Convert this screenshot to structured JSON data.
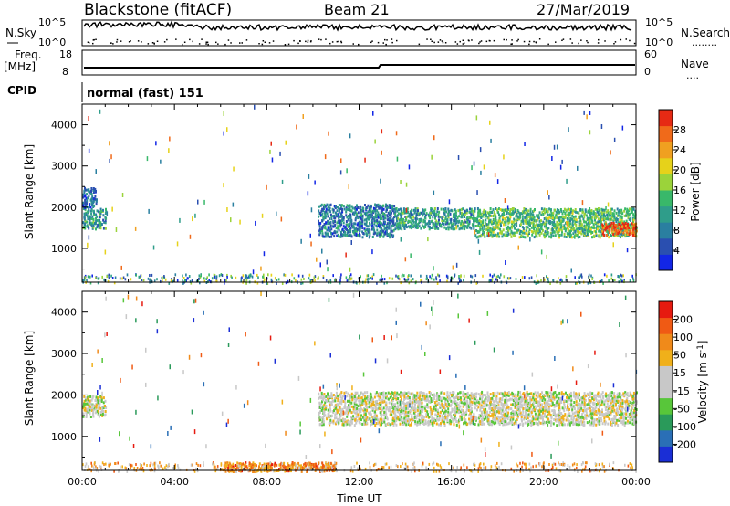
{
  "header": {
    "station": "Blackstone (fitACF)",
    "beam": "Beam 21",
    "date": "27/Mar/2019"
  },
  "panels": {
    "nsky": {
      "left_label": "N.Sky",
      "right_label": "N.Search",
      "left_ticks": [
        "10^5",
        "10^0"
      ],
      "right_ticks": [
        "10^5",
        "10^0"
      ],
      "right_marker": "........"
    },
    "freq": {
      "left_label_1": "Freq.",
      "left_label_2": "[MHz]",
      "left_ticks": [
        "18",
        "8"
      ],
      "right_label": "Nave",
      "right_ticks": [
        "60",
        "0"
      ],
      "right_marker": "...."
    },
    "cpid": {
      "label": "CPID",
      "text": "normal (fast) 151"
    }
  },
  "chart_data": [
    {
      "type": "heatmap",
      "name": "power",
      "ylabel": "Slant Range [km]",
      "ylim": [
        180,
        4500
      ],
      "yticks": [
        "4000",
        "3000",
        "2000",
        "1000"
      ],
      "ytick_values": [
        4000,
        3000,
        2000,
        1000
      ],
      "xlim_hours": [
        0,
        24
      ],
      "colorbar": {
        "label": "Power [dB]",
        "ticks": [
          "4",
          "8",
          "12",
          "16",
          "20",
          "24",
          "28"
        ],
        "colors": [
          "#1226e6",
          "#2a4fb0",
          "#2a7fa0",
          "#2f9d8a",
          "#39b86a",
          "#9bd33a",
          "#e6d21a",
          "#f0a020",
          "#f06a1a",
          "#e62a14"
        ]
      },
      "regions": [
        {
          "x0": 0.0,
          "x1": 1.0,
          "y0": 1500,
          "y1": 2000,
          "level": 0.35
        },
        {
          "x0": 0.0,
          "x1": 0.6,
          "y0": 2000,
          "y1": 2500,
          "level": 0.2
        },
        {
          "x0": 10.2,
          "x1": 13.5,
          "y0": 1300,
          "y1": 2100,
          "level": 0.25
        },
        {
          "x0": 13.5,
          "x1": 17.0,
          "y0": 1500,
          "y1": 2000,
          "level": 0.35
        },
        {
          "x0": 17.0,
          "x1": 24.0,
          "y0": 1300,
          "y1": 2000,
          "level": 0.45
        },
        {
          "x0": 22.5,
          "x1": 24.0,
          "y0": 1350,
          "y1": 1650,
          "level": 0.9
        }
      ]
    },
    {
      "type": "heatmap",
      "name": "velocity",
      "ylabel": "Slant Range [km]",
      "ylim": [
        180,
        4500
      ],
      "yticks": [
        "4000",
        "3000",
        "2000",
        "1000"
      ],
      "ytick_values": [
        4000,
        3000,
        2000,
        1000
      ],
      "xlim_hours": [
        0,
        24
      ],
      "xlabel": "Time UT",
      "xticks": [
        "00:00",
        "04:00",
        "08:00",
        "12:00",
        "16:00",
        "20:00",
        "00:00"
      ],
      "colorbar": {
        "label": "Velocity [m s",
        "label_sup": "-1",
        "label_close": "]",
        "ticks": [
          "200",
          "100",
          "50",
          "15",
          "-15",
          "-50",
          "-100",
          "-200"
        ],
        "colors": [
          "#1a2ed6",
          "#2a6fb6",
          "#2a9a5a",
          "#58c63a",
          "#c8c8c8",
          "#c8c8c8",
          "#f0b01a",
          "#f08a1a",
          "#f05a14",
          "#e61a10"
        ]
      },
      "regions": [
        {
          "x0": 0.0,
          "x1": 1.0,
          "y0": 1500,
          "y1": 2000,
          "level": 0.5
        },
        {
          "x0": 10.2,
          "x1": 24.0,
          "y0": 1300,
          "y1": 2100,
          "level": 0.5
        },
        {
          "x0": 6.0,
          "x1": 11.0,
          "y0": 180,
          "y1": 400,
          "level": 0.75
        }
      ]
    }
  ]
}
